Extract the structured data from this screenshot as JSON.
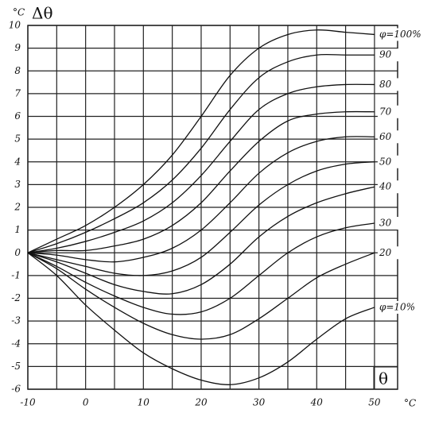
{
  "chart_data": {
    "type": "line",
    "ylabel": "Δθ",
    "y_unit": "°C",
    "xlabel": "θ",
    "x_unit": "°C",
    "x": [
      -10,
      -5,
      0,
      5,
      10,
      15,
      20,
      25,
      30,
      35,
      40,
      45,
      50
    ],
    "xlim": [
      -10,
      54
    ],
    "xticks": [
      -10,
      0,
      10,
      20,
      30,
      40,
      50
    ],
    "ylim": [
      -6,
      10
    ],
    "yticks": [
      -6,
      -5,
      -4,
      -3,
      -2,
      -1,
      0,
      1,
      2,
      3,
      4,
      5,
      6,
      7,
      8,
      9,
      10
    ],
    "grid": true,
    "series": [
      {
        "name": "φ=100%",
        "color": "#111",
        "values": [
          0,
          0.6,
          1.2,
          2.0,
          3.0,
          4.3,
          6.0,
          7.8,
          9.0,
          9.6,
          9.8,
          9.7,
          9.6
        ]
      },
      {
        "name": "90",
        "color": "#111",
        "values": [
          0,
          0.4,
          0.9,
          1.5,
          2.2,
          3.2,
          4.6,
          6.3,
          7.7,
          8.4,
          8.7,
          8.7,
          8.7
        ]
      },
      {
        "name": "80",
        "color": "#111",
        "values": [
          0,
          0.2,
          0.5,
          0.9,
          1.4,
          2.2,
          3.4,
          4.9,
          6.3,
          7.0,
          7.3,
          7.4,
          7.4
        ]
      },
      {
        "name": "70",
        "color": "#111",
        "values": [
          0,
          0.1,
          0.1,
          0.3,
          0.6,
          1.2,
          2.2,
          3.6,
          4.9,
          5.8,
          6.1,
          6.2,
          6.2
        ]
      },
      {
        "name": "60",
        "color": "#111",
        "values": [
          0,
          -0.1,
          -0.3,
          -0.4,
          -0.2,
          0.2,
          1.0,
          2.2,
          3.5,
          4.4,
          4.9,
          5.1,
          5.1
        ]
      },
      {
        "name": "50",
        "color": "#111",
        "values": [
          0,
          -0.3,
          -0.6,
          -0.9,
          -1.0,
          -0.8,
          -0.2,
          0.9,
          2.1,
          3.0,
          3.6,
          3.9,
          4.0
        ]
      },
      {
        "name": "40",
        "color": "#111",
        "values": [
          0,
          -0.4,
          -0.9,
          -1.4,
          -1.7,
          -1.8,
          -1.4,
          -0.5,
          0.7,
          1.6,
          2.2,
          2.6,
          2.9
        ]
      },
      {
        "name": "30",
        "color": "#111",
        "values": [
          0,
          -0.6,
          -1.3,
          -1.9,
          -2.4,
          -2.7,
          -2.6,
          -2.0,
          -1.0,
          0,
          0.7,
          1.1,
          1.3
        ]
      },
      {
        "name": "20",
        "color": "#111",
        "values": [
          0,
          -0.7,
          -1.6,
          -2.4,
          -3.1,
          -3.6,
          -3.8,
          -3.6,
          -2.9,
          -2.0,
          -1.1,
          -0.5,
          0.0
        ]
      },
      {
        "name": "φ=10%",
        "color": "#111",
        "values": [
          0,
          -1.0,
          -2.3,
          -3.4,
          -4.4,
          -5.1,
          -5.6,
          -5.8,
          -5.5,
          -4.8,
          -3.8,
          -2.9,
          -2.4
        ]
      }
    ]
  }
}
